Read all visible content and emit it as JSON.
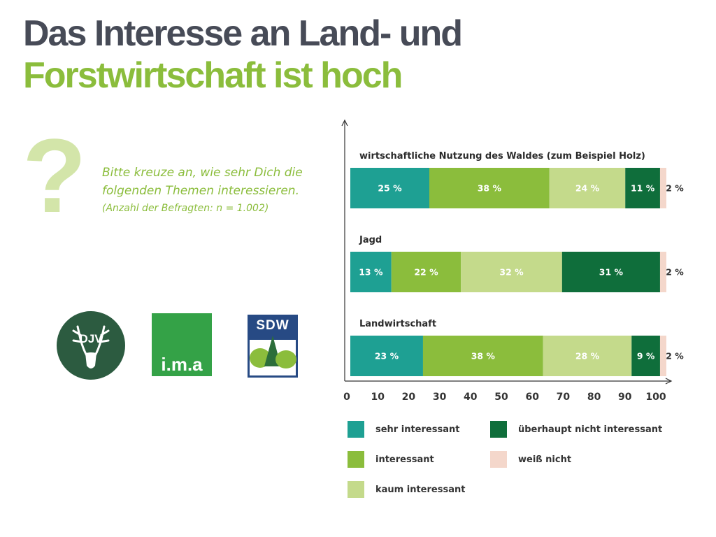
{
  "title": {
    "line1": "Das Interesse an Land- und",
    "line2": "Forstwirtschaft ist hoch"
  },
  "question": {
    "mark": "?",
    "text": "Bitte kreuze an, wie sehr Dich die folgenden Themen interessieren.",
    "note": "(Anzahl der Befragten: n = 1.002)"
  },
  "logos": {
    "djv": "DJV",
    "ima": "i.m.a",
    "sdw": "SDW"
  },
  "colors": {
    "title_dark": "#474b57",
    "title_green": "#8bbd3c",
    "sehr_interessant": "#1ea093",
    "interessant": "#8bbd3c",
    "kaum_interessant": "#c4da8b",
    "ueberhaupt_nicht": "#0f6e3b",
    "weiss_nicht": "#f4d7cb"
  },
  "chart_data": {
    "type": "bar",
    "orientation": "horizontal-stacked",
    "categories": [
      "wirtschaftliche Nutzung des Waldes (zum Beispiel Holz)",
      "Jagd",
      "Landwirtschaft"
    ],
    "series": [
      {
        "name": "sehr interessant",
        "color": "#1ea093",
        "values": [
          25,
          13,
          23
        ]
      },
      {
        "name": "interessant",
        "color": "#8bbd3c",
        "values": [
          38,
          22,
          38
        ]
      },
      {
        "name": "kaum interessant",
        "color": "#c4da8b",
        "values": [
          24,
          32,
          28
        ]
      },
      {
        "name": "überhaupt nicht interessant",
        "color": "#0f6e3b",
        "values": [
          11,
          31,
          9
        ]
      },
      {
        "name": "weiß nicht",
        "color": "#f4d7cb",
        "values": [
          2,
          2,
          2
        ]
      }
    ],
    "value_suffix": " %",
    "xlim": [
      0,
      100
    ],
    "xticks": [
      0,
      10,
      20,
      30,
      40,
      50,
      60,
      70,
      80,
      90,
      100
    ],
    "legend_placement": "bottom",
    "grid": false
  }
}
